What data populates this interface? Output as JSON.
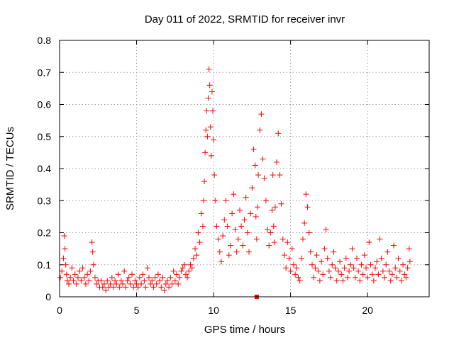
{
  "chart_data": {
    "type": "scatter",
    "title": "Day 011 of 2022, SRMTID for receiver invr",
    "xlabel": "GPS time / hours",
    "ylabel": "SRMTID / TECUs",
    "xlim": [
      0,
      24
    ],
    "ylim": [
      0,
      0.8
    ],
    "xticks": [
      0,
      5,
      10,
      15,
      20
    ],
    "yticks": [
      0,
      0.1,
      0.2,
      0.3,
      0.4,
      0.5,
      0.6,
      0.7,
      0.8
    ],
    "xtick_labels": [
      "0",
      "5",
      "10",
      "15",
      "20"
    ],
    "ytick_labels": [
      "0",
      "0.1",
      "0.2",
      "0.3",
      "0.4",
      "0.5",
      "0.6",
      "0.7",
      "0.8"
    ],
    "grid": true,
    "marker": "+",
    "color": "#ff0000",
    "series": [
      {
        "name": "SRMTID",
        "x": [
          0.05,
          0.15,
          0.25,
          0.3,
          0.35,
          0.4,
          0.45,
          0.5,
          0.6,
          0.7,
          0.8,
          0.9,
          1.0,
          1.1,
          1.2,
          1.3,
          1.4,
          1.5,
          1.6,
          1.7,
          1.8,
          1.9,
          2.0,
          2.1,
          2.15,
          2.2,
          2.3,
          2.4,
          2.5,
          2.6,
          2.7,
          2.8,
          2.9,
          3.0,
          3.1,
          3.2,
          3.3,
          3.4,
          3.5,
          3.6,
          3.7,
          3.8,
          3.9,
          4.0,
          4.1,
          4.2,
          4.3,
          4.4,
          4.5,
          4.6,
          4.7,
          4.8,
          4.9,
          5.0,
          5.1,
          5.2,
          5.3,
          5.4,
          5.5,
          5.6,
          5.7,
          5.8,
          5.9,
          6.0,
          6.1,
          6.2,
          6.3,
          6.4,
          6.5,
          6.6,
          6.7,
          6.8,
          6.9,
          7.0,
          7.1,
          7.2,
          7.3,
          7.4,
          7.5,
          7.6,
          7.7,
          7.8,
          7.9,
          8.0,
          8.1,
          8.2,
          8.3,
          8.4,
          8.5,
          8.6,
          8.7,
          8.8,
          8.9,
          9.0,
          9.1,
          9.2,
          9.3,
          9.35,
          9.4,
          9.45,
          9.5,
          9.55,
          9.6,
          9.65,
          9.7,
          9.75,
          9.8,
          9.85,
          9.9,
          9.95,
          10.0,
          10.05,
          10.1,
          10.2,
          10.3,
          10.4,
          10.5,
          10.6,
          10.7,
          10.8,
          10.9,
          11.0,
          11.1,
          11.2,
          11.3,
          11.4,
          11.5,
          11.6,
          11.7,
          11.8,
          11.9,
          12.0,
          12.1,
          12.2,
          12.3,
          12.4,
          12.5,
          12.6,
          12.7,
          12.75,
          12.8,
          12.85,
          12.9,
          13.0,
          13.1,
          13.2,
          13.3,
          13.4,
          13.5,
          13.6,
          13.7,
          13.8,
          13.85,
          13.9,
          13.95,
          14.0,
          14.1,
          14.2,
          14.3,
          14.4,
          14.5,
          14.6,
          14.7,
          14.8,
          14.9,
          15.0,
          15.1,
          15.2,
          15.3,
          15.4,
          15.5,
          15.6,
          15.7,
          15.8,
          15.9,
          16.0,
          16.1,
          16.2,
          16.3,
          16.4,
          16.5,
          16.6,
          16.7,
          16.8,
          16.9,
          17.0,
          17.1,
          17.2,
          17.3,
          17.4,
          17.5,
          17.6,
          17.7,
          17.8,
          17.9,
          18.0,
          18.1,
          18.2,
          18.3,
          18.4,
          18.5,
          18.6,
          18.7,
          18.8,
          18.9,
          19.0,
          19.1,
          19.2,
          19.3,
          19.4,
          19.5,
          19.6,
          19.7,
          19.8,
          19.9,
          20.0,
          20.1,
          20.2,
          20.3,
          20.4,
          20.5,
          20.6,
          20.7,
          20.8,
          20.9,
          21.0,
          21.1,
          21.2,
          21.3,
          21.4,
          21.5,
          21.6,
          21.7,
          21.8,
          21.9,
          22.0,
          22.1,
          22.2,
          22.3,
          22.4,
          22.5,
          22.6,
          22.7,
          22.75
        ],
        "y": [
          0.06,
          0.08,
          0.12,
          0.19,
          0.15,
          0.1,
          0.07,
          0.05,
          0.04,
          0.06,
          0.09,
          0.05,
          0.07,
          0.04,
          0.06,
          0.08,
          0.05,
          0.09,
          0.06,
          0.04,
          0.07,
          0.05,
          0.08,
          0.17,
          0.14,
          0.1,
          0.06,
          0.04,
          0.05,
          0.03,
          0.05,
          0.03,
          0.04,
          0.02,
          0.05,
          0.03,
          0.04,
          0.06,
          0.03,
          0.05,
          0.04,
          0.07,
          0.03,
          0.05,
          0.04,
          0.08,
          0.03,
          0.05,
          0.06,
          0.04,
          0.07,
          0.03,
          0.05,
          0.04,
          0.03,
          0.06,
          0.04,
          0.07,
          0.05,
          0.03,
          0.09,
          0.06,
          0.04,
          0.05,
          0.03,
          0.06,
          0.04,
          0.07,
          0.05,
          0.03,
          0.06,
          0.02,
          0.04,
          0.05,
          0.03,
          0.06,
          0.04,
          0.08,
          0.05,
          0.07,
          0.04,
          0.06,
          0.08,
          0.09,
          0.1,
          0.07,
          0.06,
          0.08,
          0.1,
          0.09,
          0.12,
          0.15,
          0.13,
          0.2,
          0.17,
          0.26,
          0.22,
          0.3,
          0.36,
          0.45,
          0.52,
          0.58,
          0.5,
          0.62,
          0.71,
          0.66,
          0.53,
          0.44,
          0.64,
          0.58,
          0.49,
          0.38,
          0.3,
          0.22,
          0.18,
          0.14,
          0.11,
          0.19,
          0.24,
          0.3,
          0.22,
          0.13,
          0.16,
          0.26,
          0.32,
          0.21,
          0.14,
          0.18,
          0.27,
          0.22,
          0.16,
          0.24,
          0.31,
          0.2,
          0.14,
          0.26,
          0.34,
          0.46,
          0.41,
          0.25,
          0.18,
          0.28,
          0.38,
          0.52,
          0.57,
          0.43,
          0.37,
          0.3,
          0.21,
          0.16,
          0.2,
          0.27,
          0.38,
          0.22,
          0.17,
          0.28,
          0.42,
          0.51,
          0.38,
          0.29,
          0.18,
          0.13,
          0.09,
          0.17,
          0.12,
          0.08,
          0.15,
          0.1,
          0.07,
          0.09,
          0.06,
          0.05,
          0.12,
          0.18,
          0.23,
          0.32,
          0.28,
          0.2,
          0.14,
          0.1,
          0.06,
          0.09,
          0.13,
          0.08,
          0.05,
          0.11,
          0.07,
          0.15,
          0.21,
          0.12,
          0.08,
          0.06,
          0.1,
          0.14,
          0.09,
          0.05,
          0.08,
          0.11,
          0.07,
          0.05,
          0.09,
          0.12,
          0.06,
          0.08,
          0.1,
          0.15,
          0.09,
          0.06,
          0.12,
          0.08,
          0.05,
          0.1,
          0.07,
          0.13,
          0.09,
          0.06,
          0.17,
          0.1,
          0.07,
          0.05,
          0.09,
          0.11,
          0.07,
          0.18,
          0.12,
          0.08,
          0.06,
          0.1,
          0.14,
          0.08,
          0.05,
          0.07,
          0.16,
          0.09,
          0.06,
          0.12,
          0.08,
          0.05,
          0.1,
          0.07,
          0.06,
          0.09,
          0.15,
          0.11
        ]
      }
    ],
    "annotation": {
      "x": 12.8,
      "y": 0.0,
      "kind": "square-marker"
    }
  }
}
